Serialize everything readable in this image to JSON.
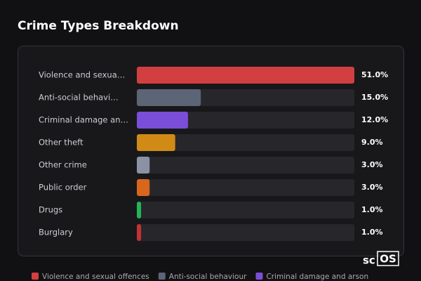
{
  "chart_data": {
    "type": "bar",
    "orientation": "horizontal",
    "title": "Crime Types Breakdown",
    "categories": [
      "Violence and sexua…",
      "Anti-social behavi…",
      "Criminal damage an…",
      "Other theft",
      "Other crime",
      "Public order",
      "Drugs",
      "Burglary"
    ],
    "values": [
      51,
      15,
      12,
      9,
      3,
      3,
      1,
      1
    ],
    "value_labels": [
      "51.0%",
      "15.0%",
      "12.0%",
      "9.0%",
      "3.0%",
      "3.0%",
      "1.0%",
      "1.0%"
    ],
    "colors": [
      "#d23f41",
      "#5b6576",
      "#7a4ed8",
      "#d08a16",
      "#8a92a4",
      "#d8661d",
      "#22b55a",
      "#c23232"
    ],
    "legend": [
      "Violence and sexual offences",
      "Anti-social behaviour",
      "Criminal damage and arson"
    ],
    "watermark": [
      "sc",
      "OS"
    ]
  }
}
